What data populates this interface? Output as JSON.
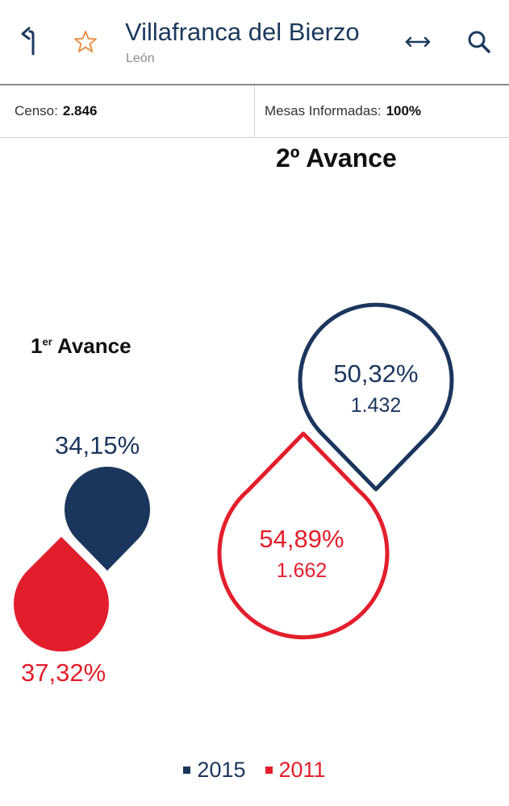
{
  "header": {
    "title": "Villafranca del Bierzo",
    "subtitle": "León",
    "icons": [
      "back-icon",
      "star-icon",
      "expand-icon",
      "search-icon"
    ]
  },
  "stats": {
    "censo_label": "Censo:",
    "censo_value": "2.846",
    "mesas_label": "Mesas Informadas:",
    "mesas_value": "100%"
  },
  "avance2": {
    "title_main": "2º Avance",
    "y2015": {
      "percent": "50,32%",
      "votes": "1.432",
      "value": 50.32
    },
    "y2011": {
      "percent": "54,89%",
      "votes": "1.662",
      "value": 54.89
    }
  },
  "avance1": {
    "title_num": "1",
    "title_sup": "er",
    "title_text": "Avance",
    "y2015": {
      "percent": "34,15%",
      "value": 34.15
    },
    "y2011": {
      "percent": "37,32%",
      "value": 37.32
    }
  },
  "legend": {
    "label_2015": "2015",
    "label_2011": "2011"
  },
  "colors": {
    "series_2015": "#1b365d",
    "series_2011": "#e31e2c",
    "title": "#1b3a5c",
    "star": "#e8893a"
  }
}
